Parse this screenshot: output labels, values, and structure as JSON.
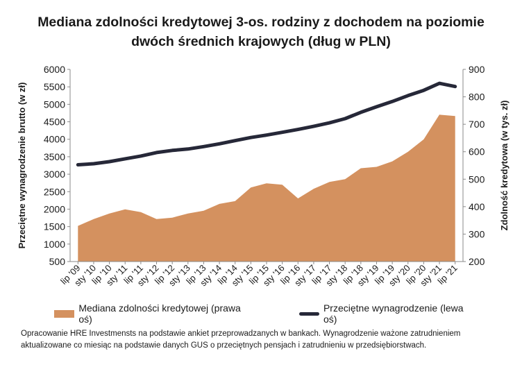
{
  "chart_data": {
    "type": "area+line",
    "title_line1": "Mediana zdolności kredytowej 3-os. rodziny z dochodem na poziomie",
    "title_line2": "dwóch średnich krajowych (dług w PLN)",
    "ylabel_left": "Przeciętne wynagrodzenie brutto (w zł)",
    "ylabel_right": "Zdolność kredytowa (w tys. zł)",
    "left_axis": {
      "ylim": [
        500,
        6000
      ],
      "ticks": [
        500,
        1000,
        1500,
        2000,
        2500,
        3000,
        3500,
        4000,
        4500,
        5000,
        5500,
        6000
      ]
    },
    "right_axis": {
      "ylim": [
        200,
        900
      ],
      "ticks": [
        200,
        300,
        400,
        500,
        600,
        700,
        800,
        900
      ]
    },
    "x_ticks": [
      "lip '09",
      "sty '10",
      "lip '10",
      "sty '11",
      "lip '11",
      "sty '12",
      "lip '12",
      "sty '13",
      "lip '13",
      "sty '14",
      "lip '14",
      "sty '15",
      "lip '15",
      "sty '16",
      "lip '16",
      "sty '17",
      "lip '17",
      "sty '18",
      "lip '18",
      "sty '19",
      "lip '19",
      "sty '20",
      "lip '20",
      "sty '21",
      "lip '21"
    ],
    "series": [
      {
        "name": "Mediana zdolności kredytowej (prawa oś)",
        "axis": "right",
        "color": "#D4915F",
        "kind": "area",
        "points": [
          [
            "lip '09",
            330
          ],
          [
            "sty '10",
            355
          ],
          [
            "lip '10",
            375
          ],
          [
            "sty '11",
            390
          ],
          [
            "lip '11",
            380
          ],
          [
            "sty '12",
            355
          ],
          [
            "lip '12",
            360
          ],
          [
            "sty '13",
            375
          ],
          [
            "lip '13",
            385
          ],
          [
            "sty '14",
            410
          ],
          [
            "lip '14",
            420
          ],
          [
            "sty '15",
            470
          ],
          [
            "lip '15",
            485
          ],
          [
            "sty '16",
            480
          ],
          [
            "lip '16",
            430
          ],
          [
            "sty '17",
            465
          ],
          [
            "lip '17",
            490
          ],
          [
            "sty '18",
            500
          ],
          [
            "lip '18",
            540
          ],
          [
            "sty '19",
            545
          ],
          [
            "lip '19",
            565
          ],
          [
            "sty '20",
            600
          ],
          [
            "lip '20",
            645
          ],
          [
            "sty '21",
            735
          ],
          [
            "lip '21",
            730
          ]
        ]
      },
      {
        "name": "Przeciętne wynagrodzenie (lewa oś)",
        "axis": "left",
        "color": "#262838",
        "kind": "line",
        "points": [
          [
            "lip '09",
            3270
          ],
          [
            "sty '10",
            3300
          ],
          [
            "lip '10",
            3360
          ],
          [
            "sty '11",
            3440
          ],
          [
            "lip '11",
            3520
          ],
          [
            "sty '12",
            3620
          ],
          [
            "lip '12",
            3680
          ],
          [
            "sty '13",
            3720
          ],
          [
            "lip '13",
            3790
          ],
          [
            "sty '14",
            3870
          ],
          [
            "lip '14",
            3960
          ],
          [
            "sty '15",
            4050
          ],
          [
            "lip '15",
            4120
          ],
          [
            "sty '16",
            4200
          ],
          [
            "lip '16",
            4280
          ],
          [
            "sty '17",
            4370
          ],
          [
            "lip '17",
            4470
          ],
          [
            "sty '18",
            4590
          ],
          [
            "lip '18",
            4770
          ],
          [
            "sty '19",
            4930
          ],
          [
            "lip '19",
            5080
          ],
          [
            "sty '20",
            5250
          ],
          [
            "lip '20",
            5400
          ],
          [
            "sty '21",
            5600
          ],
          [
            "lip '21",
            5510
          ]
        ]
      }
    ]
  },
  "note": "Opracowanie HRE Investmensts na podstawie ankiet przeprowadzanych w bankach. Wynagrodzenie ważone zatrudnieniem aktualizowane co miesiąc na podstawie danych GUS o przeciętnych pensjach i zatrudnieniu w przedsiębiorstwach."
}
